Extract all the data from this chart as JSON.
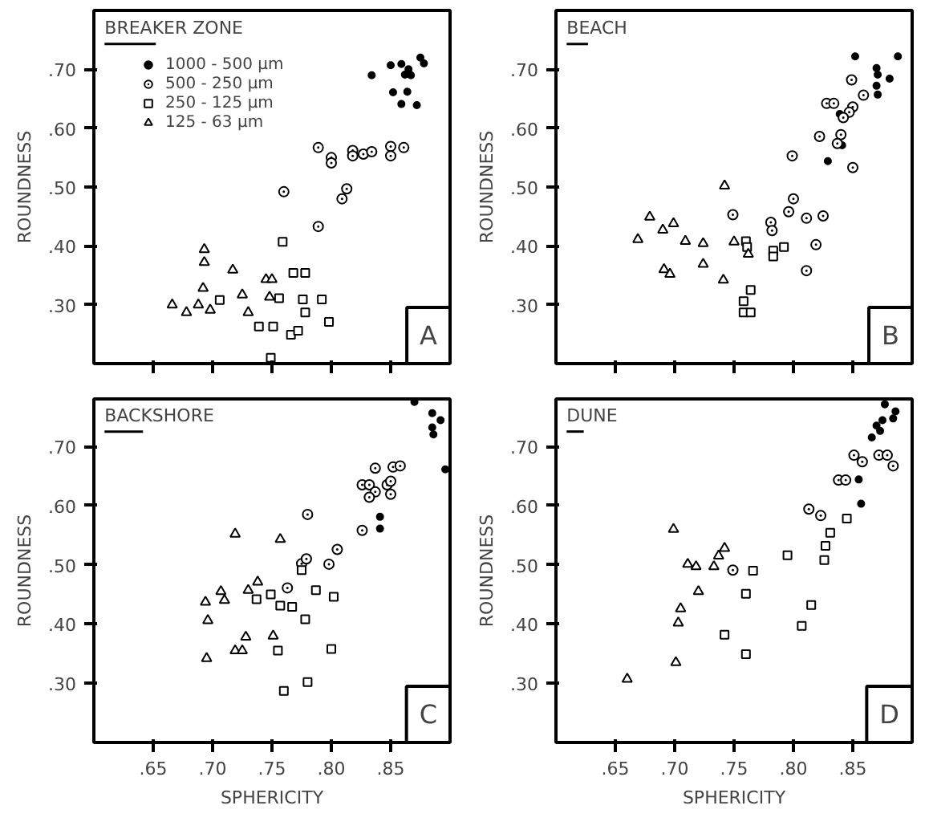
{
  "chart_data": [
    {
      "type": "scatter",
      "title": "BREAKER ZONE",
      "ylabel": "ROUNDNESS",
      "annotations": [
        "A"
      ],
      "xlim": [
        0.6,
        0.9
      ],
      "ylim": [
        0.2,
        0.8
      ],
      "xticks": [
        0.65,
        0.7,
        0.75,
        0.8,
        0.85
      ],
      "yticks": [
        {
          "value": 0.3,
          "label": ".30"
        },
        {
          "value": 0.4,
          "label": ".40"
        },
        {
          "value": 0.5,
          "label": ".50"
        },
        {
          "value": 0.6,
          "label": ".60"
        },
        {
          "value": 0.7,
          "label": ".70"
        }
      ],
      "tick_labels": "y",
      "grid": false,
      "legend": "top left",
      "series": [
        {
          "name": "1000 - 500 µm",
          "color": "#000000",
          "marker": "circle",
          "x": [
            0.834,
            0.85,
            0.859,
            0.865,
            0.875,
            0.878,
            0.862,
            0.867,
            0.852,
            0.864,
            0.859,
            0.872
          ],
          "values": [
            0.69,
            0.707,
            0.709,
            0.7,
            0.72,
            0.71,
            0.691,
            0.69,
            0.661,
            0.662,
            0.641,
            0.639
          ]
        },
        {
          "name": "500 - 250 µm",
          "color": "#000000",
          "marker": "circle_dot",
          "x": [
            0.789,
            0.8,
            0.8,
            0.818,
            0.818,
            0.827,
            0.834,
            0.85,
            0.85,
            0.861,
            0.813,
            0.809,
            0.76,
            0.789
          ],
          "values": [
            0.567,
            0.55,
            0.541,
            0.562,
            0.553,
            0.556,
            0.56,
            0.569,
            0.553,
            0.567,
            0.497,
            0.48,
            0.492,
            0.433
          ]
        },
        {
          "name": "250 - 125 µm",
          "color": "#000000",
          "marker": "square",
          "x": [
            0.759,
            0.768,
            0.778,
            0.756,
            0.776,
            0.792,
            0.778,
            0.798,
            0.739,
            0.751,
            0.766,
            0.772,
            0.749,
            0.706
          ],
          "values": [
            0.407,
            0.354,
            0.354,
            0.311,
            0.309,
            0.309,
            0.287,
            0.271,
            0.263,
            0.263,
            0.249,
            0.256,
            0.21,
            0.308
          ]
        },
        {
          "name": "125 - 63 µm",
          "color": "#000000",
          "marker": "triangle",
          "x": [
            0.693,
            0.693,
            0.717,
            0.745,
            0.75,
            0.692,
            0.725,
            0.748,
            0.666,
            0.678,
            0.688,
            0.698,
            0.73
          ],
          "values": [
            0.394,
            0.372,
            0.359,
            0.343,
            0.343,
            0.328,
            0.317,
            0.313,
            0.3,
            0.287,
            0.3,
            0.291,
            0.287
          ]
        }
      ]
    },
    {
      "type": "scatter",
      "title": "BEACH",
      "ylabel": "ROUNDNESS",
      "annotations": [
        "B"
      ],
      "xlim": [
        0.6,
        0.9
      ],
      "ylim": [
        0.2,
        0.8
      ],
      "xticks": [
        0.65,
        0.7,
        0.75,
        0.8,
        0.85
      ],
      "yticks": [
        {
          "value": 0.3,
          "label": ".30"
        },
        {
          "value": 0.4,
          "label": ".40"
        },
        {
          "value": 0.5,
          "label": ".50"
        },
        {
          "value": 0.6,
          "label": ".60"
        },
        {
          "value": 0.7,
          "label": ".70"
        }
      ],
      "tick_labels": "y",
      "grid": false,
      "series": [
        {
          "color": "#000000",
          "marker": "circle",
          "x": [
            0.852,
            0.87,
            0.871,
            0.881,
            0.87,
            0.871,
            0.888,
            0.839,
            0.841,
            0.829
          ],
          "values": [
            0.722,
            0.702,
            0.691,
            0.684,
            0.672,
            0.657,
            0.722,
            0.624,
            0.571,
            0.544
          ]
        },
        {
          "color": "#000000",
          "marker": "circle_dot",
          "x": [
            0.849,
            0.859,
            0.85,
            0.847,
            0.828,
            0.834,
            0.842,
            0.84,
            0.822,
            0.837,
            0.799,
            0.8,
            0.796,
            0.781,
            0.782,
            0.811,
            0.825,
            0.819,
            0.811,
            0.749,
            0.85
          ],
          "values": [
            0.682,
            0.656,
            0.636,
            0.627,
            0.642,
            0.642,
            0.618,
            0.589,
            0.586,
            0.574,
            0.553,
            0.48,
            0.458,
            0.44,
            0.426,
            0.447,
            0.451,
            0.402,
            0.358,
            0.453,
            0.533
          ]
        },
        {
          "color": "#000000",
          "marker": "square",
          "x": [
            0.76,
            0.761,
            0.764,
            0.758,
            0.758,
            0.764,
            0.783,
            0.783,
            0.792
          ],
          "values": [
            0.408,
            0.398,
            0.325,
            0.306,
            0.287,
            0.287,
            0.392,
            0.382,
            0.398
          ]
        },
        {
          "color": "#000000",
          "marker": "triangle",
          "x": [
            0.742,
            0.679,
            0.69,
            0.699,
            0.709,
            0.724,
            0.724,
            0.669,
            0.691,
            0.696,
            0.75,
            0.762,
            0.741
          ],
          "values": [
            0.502,
            0.449,
            0.427,
            0.438,
            0.408,
            0.404,
            0.369,
            0.411,
            0.36,
            0.352,
            0.407,
            0.386,
            0.342
          ]
        }
      ]
    },
    {
      "type": "scatter",
      "title": "BACKSHORE",
      "xlabel": "SPHERICITY",
      "ylabel": "ROUNDNESS",
      "annotations": [
        "C"
      ],
      "xlim": [
        0.6,
        0.9
      ],
      "ylim": [
        0.2,
        0.78
      ],
      "xticks": [
        {
          "value": 0.65,
          "label": ".65"
        },
        {
          "value": 0.7,
          "label": ".70"
        },
        {
          "value": 0.75,
          "label": ".75"
        },
        {
          "value": 0.8,
          "label": ".80"
        },
        {
          "value": 0.85,
          "label": ".85"
        }
      ],
      "yticks": [
        {
          "value": 0.3,
          "label": ".30"
        },
        {
          "value": 0.4,
          "label": ".40"
        },
        {
          "value": 0.5,
          "label": ".50"
        },
        {
          "value": 0.6,
          "label": ".60"
        },
        {
          "value": 0.7,
          "label": ".70"
        }
      ],
      "grid": false,
      "series": [
        {
          "color": "#000000",
          "marker": "circle",
          "x": [
            0.87,
            0.885,
            0.892,
            0.885,
            0.886,
            0.896,
            0.841,
            0.841
          ],
          "values": [
            0.775,
            0.756,
            0.744,
            0.732,
            0.72,
            0.661,
            0.581,
            0.561
          ]
        },
        {
          "color": "#000000",
          "marker": "circle_dot",
          "x": [
            0.837,
            0.852,
            0.858,
            0.826,
            0.832,
            0.837,
            0.832,
            0.847,
            0.85,
            0.85,
            0.826,
            0.78,
            0.805,
            0.798,
            0.775,
            0.779,
            0.763
          ],
          "values": [
            0.663,
            0.665,
            0.667,
            0.635,
            0.635,
            0.623,
            0.614,
            0.635,
            0.641,
            0.619,
            0.558,
            0.585,
            0.526,
            0.501,
            0.502,
            0.51,
            0.461
          ]
        },
        {
          "color": "#000000",
          "marker": "square",
          "x": [
            0.749,
            0.757,
            0.767,
            0.778,
            0.787,
            0.802,
            0.775,
            0.8,
            0.78,
            0.76,
            0.755,
            0.737
          ],
          "values": [
            0.45,
            0.431,
            0.429,
            0.408,
            0.457,
            0.446,
            0.491,
            0.358,
            0.302,
            0.287,
            0.355,
            0.442
          ]
        },
        {
          "color": "#000000",
          "marker": "triangle",
          "x": [
            0.719,
            0.757,
            0.694,
            0.707,
            0.71,
            0.73,
            0.738,
            0.696,
            0.695,
            0.719,
            0.725,
            0.728,
            0.751
          ],
          "values": [
            0.552,
            0.543,
            0.437,
            0.455,
            0.44,
            0.457,
            0.471,
            0.406,
            0.342,
            0.355,
            0.355,
            0.378,
            0.38
          ]
        }
      ]
    },
    {
      "type": "scatter",
      "title": "DUNE",
      "xlabel": "SPHERICITY",
      "ylabel": "ROUNDNESS",
      "annotations": [
        "D"
      ],
      "xlim": [
        0.6,
        0.9
      ],
      "ylim": [
        0.2,
        0.78
      ],
      "xticks": [
        {
          "value": 0.65,
          "label": ".65"
        },
        {
          "value": 0.7,
          "label": ".70"
        },
        {
          "value": 0.75,
          "label": ".75"
        },
        {
          "value": 0.8,
          "label": ".80"
        },
        {
          "value": 0.85,
          "label": ".85"
        }
      ],
      "yticks": [
        {
          "value": 0.3,
          "label": ".30"
        },
        {
          "value": 0.4,
          "label": ".40"
        },
        {
          "value": 0.5,
          "label": ".50"
        },
        {
          "value": 0.6,
          "label": ".60"
        },
        {
          "value": 0.7,
          "label": ".70"
        }
      ],
      "grid": false,
      "series": [
        {
          "color": "#000000",
          "marker": "circle",
          "x": [
            0.877,
            0.884,
            0.875,
            0.87,
            0.873,
            0.866,
            0.886,
            0.855,
            0.857
          ],
          "values": [
            0.771,
            0.747,
            0.744,
            0.735,
            0.726,
            0.715,
            0.759,
            0.644,
            0.603
          ]
        },
        {
          "color": "#000000",
          "marker": "circle_dot",
          "x": [
            0.851,
            0.858,
            0.838,
            0.844,
            0.872,
            0.879,
            0.884,
            0.813,
            0.823,
            0.749
          ],
          "values": [
            0.685,
            0.674,
            0.643,
            0.643,
            0.685,
            0.685,
            0.667,
            0.594,
            0.583,
            0.491
          ]
        },
        {
          "color": "#000000",
          "marker": "square",
          "x": [
            0.831,
            0.827,
            0.826,
            0.845,
            0.795,
            0.815,
            0.807,
            0.766,
            0.76,
            0.742,
            0.76
          ],
          "values": [
            0.554,
            0.532,
            0.508,
            0.578,
            0.516,
            0.432,
            0.397,
            0.49,
            0.451,
            0.382,
            0.349
          ]
        },
        {
          "color": "#000000",
          "marker": "triangle",
          "x": [
            0.699,
            0.711,
            0.718,
            0.733,
            0.737,
            0.742,
            0.72,
            0.705,
            0.703,
            0.701,
            0.66
          ],
          "values": [
            0.56,
            0.501,
            0.497,
            0.497,
            0.515,
            0.528,
            0.455,
            0.426,
            0.402,
            0.335,
            0.307
          ]
        }
      ]
    }
  ]
}
